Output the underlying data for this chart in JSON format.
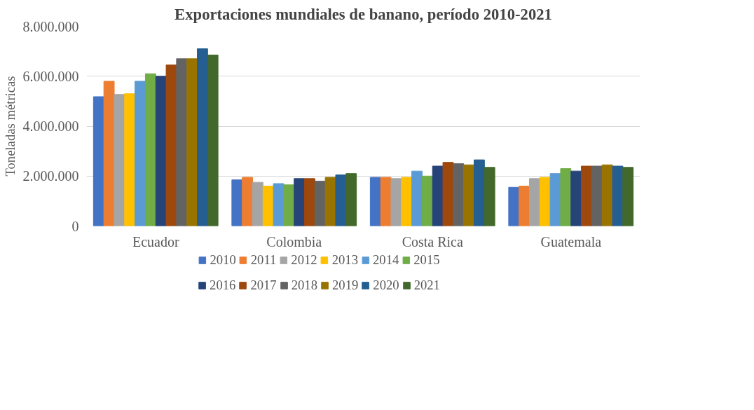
{
  "chart_data": {
    "type": "bar",
    "title": "Exportaciones mundiales de banano, período 2010-2021",
    "ylabel": "Toneladas métricas",
    "categories": [
      "Ecuador",
      "Colombia",
      "Costa Rica",
      "Guatemala"
    ],
    "series": [
      {
        "name": "2010",
        "color": "#4472c4",
        "values": [
          5180000,
          1850000,
          1950000,
          1550000
        ]
      },
      {
        "name": "2011",
        "color": "#ed7d31",
        "values": [
          5800000,
          1950000,
          1950000,
          1600000
        ]
      },
      {
        "name": "2012",
        "color": "#a5a5a5",
        "values": [
          5270000,
          1750000,
          1900000,
          1900000
        ]
      },
      {
        "name": "2013",
        "color": "#ffc000",
        "values": [
          5300000,
          1600000,
          1950000,
          1950000
        ]
      },
      {
        "name": "2014",
        "color": "#5b9bd5",
        "values": [
          5800000,
          1700000,
          2200000,
          2100000
        ]
      },
      {
        "name": "2015",
        "color": "#70ad47",
        "values": [
          6100000,
          1650000,
          2000000,
          2300000
        ]
      },
      {
        "name": "2016",
        "color": "#264478",
        "values": [
          6000000,
          1900000,
          2400000,
          2200000
        ]
      },
      {
        "name": "2017",
        "color": "#9e480e",
        "values": [
          6450000,
          1900000,
          2550000,
          2400000
        ]
      },
      {
        "name": "2018",
        "color": "#636363",
        "values": [
          6700000,
          1800000,
          2500000,
          2400000
        ]
      },
      {
        "name": "2019",
        "color": "#997300",
        "values": [
          6700000,
          1950000,
          2450000,
          2450000
        ]
      },
      {
        "name": "2020",
        "color": "#255e91",
        "values": [
          7100000,
          2050000,
          2650000,
          2400000
        ]
      },
      {
        "name": "2021",
        "color": "#43682b",
        "values": [
          6850000,
          2100000,
          2350000,
          2350000
        ]
      }
    ],
    "ylim": [
      0,
      8000000
    ],
    "yticks": [
      0,
      {
        "value": 2000000,
        "label": "2.000.000"
      },
      {
        "value": 4000000,
        "label": "4.000.000"
      },
      {
        "value": 6000000,
        "label": "6.000.000"
      },
      {
        "value": 8000000,
        "label": "8.000.000"
      }
    ],
    "grid": "y",
    "legend": "bottom"
  }
}
